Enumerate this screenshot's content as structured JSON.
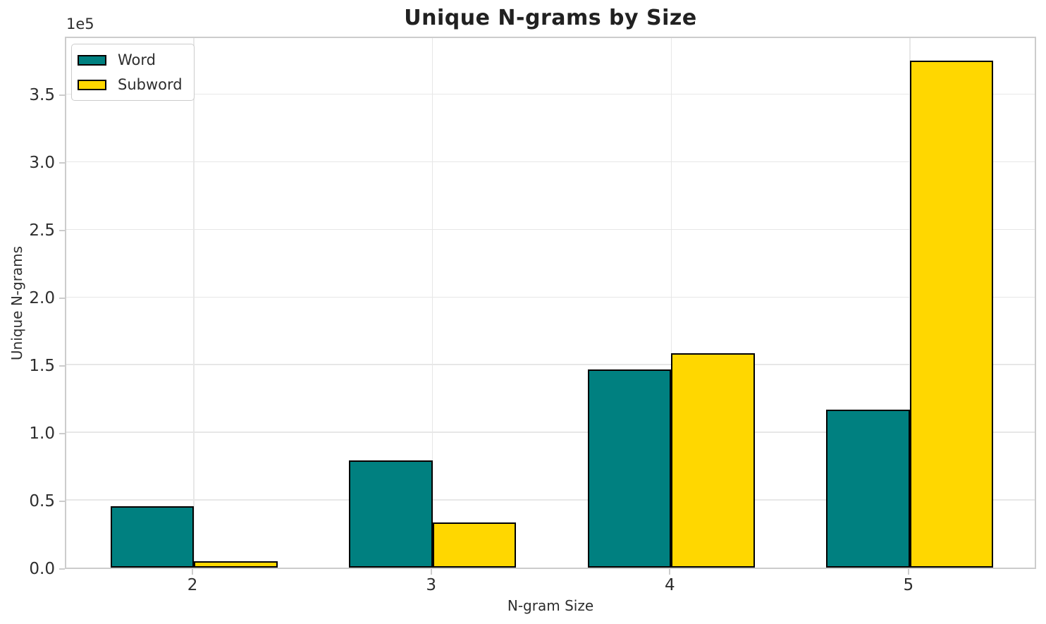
{
  "figure": {
    "title": "Unique N-grams by Size",
    "xlabel": "N-gram Size",
    "ylabel": "Unique N-grams",
    "y_offset_text": "1e5"
  },
  "legend": {
    "items": [
      {
        "label": "Word",
        "color": "#008080"
      },
      {
        "label": "Subword",
        "color": "#FFD700"
      }
    ]
  },
  "colors": {
    "word": "#008080",
    "subword": "#FFD700",
    "bar_edge": "#000000",
    "grid": "#e7e7e7",
    "spine": "#cccccc",
    "text": "#2e2e2e",
    "title_text": "#212121"
  },
  "chart_data": {
    "type": "bar",
    "title": "Unique N-grams by Size",
    "xlabel": "N-gram Size",
    "ylabel": "Unique N-grams",
    "categories": [
      "2",
      "3",
      "4",
      "5"
    ],
    "series": [
      {
        "name": "Word",
        "color": "#008080",
        "values": [
          45600,
          79400,
          146500,
          116500
        ]
      },
      {
        "name": "Subword",
        "color": "#FFD700",
        "values": [
          4800,
          33300,
          158300,
          374800
        ]
      }
    ],
    "ylim": [
      0,
      393500
    ],
    "yticks": [
      0,
      50000,
      100000,
      150000,
      200000,
      250000,
      300000,
      350000
    ],
    "ytick_labels": [
      "0.0",
      "0.5",
      "1.0",
      "1.5",
      "2.0",
      "2.5",
      "3.0",
      "3.5"
    ],
    "y_offset_text": "1e5",
    "bar_width_units": 0.35,
    "grid": true,
    "legend_position": "upper left",
    "bar_edge_color": "#000000",
    "bar_edge_width": 2
  }
}
